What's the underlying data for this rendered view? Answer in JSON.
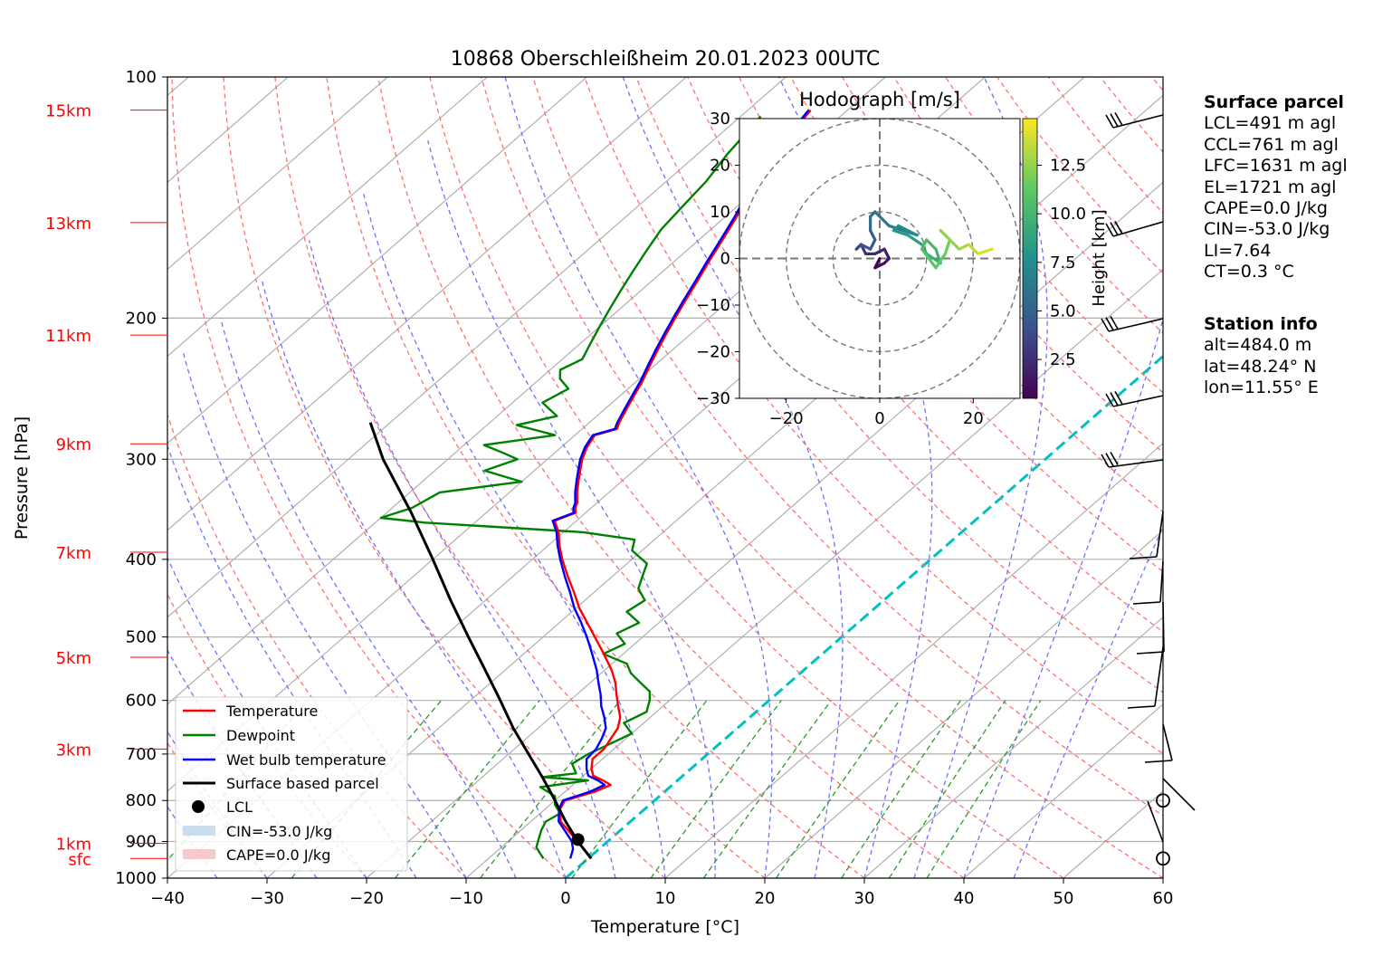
{
  "chart_data": {
    "type": "line",
    "title": "10868 Oberschleißheim 20.01.2023 00UTC",
    "xlabel": "Temperature [°C]",
    "ylabel": "Pressure [hPa]",
    "xlim": [
      -40,
      60
    ],
    "ylim": [
      1000,
      100
    ],
    "y_scale": "log",
    "x_ticks": [
      "−40",
      "−30",
      "−20",
      "−10",
      "0",
      "10",
      "20",
      "30",
      "40",
      "50",
      "60"
    ],
    "x_tick_values": [
      -40,
      -30,
      -20,
      -10,
      0,
      10,
      20,
      30,
      40,
      50,
      60
    ],
    "y_ticks": [
      100,
      200,
      300,
      400,
      500,
      600,
      700,
      800,
      900,
      1000
    ],
    "height_labels": [
      {
        "label": "sfc",
        "p": 945
      },
      {
        "label": "1km",
        "p": 905
      },
      {
        "label": "3km",
        "p": 690
      },
      {
        "label": "5km",
        "p": 530
      },
      {
        "label": "7km",
        "p": 392
      },
      {
        "label": "9km",
        "p": 287
      },
      {
        "label": "11km",
        "p": 210
      },
      {
        "label": "13km",
        "p": 152
      },
      {
        "label": "15km",
        "p": 110
      }
    ],
    "series": [
      {
        "name": "Temperature",
        "color": "#ff0000",
        "p": [
          945,
          920,
          900,
          880,
          850,
          820,
          800,
          780,
          765,
          755,
          745,
          730,
          710,
          690,
          670,
          650,
          630,
          610,
          590,
          570,
          550,
          520,
          500,
          480,
          460,
          440,
          420,
          400,
          385,
          370,
          358,
          350,
          345,
          340,
          330,
          320,
          310,
          300,
          290,
          280,
          275,
          270,
          260,
          250,
          240,
          230,
          220,
          210,
          200,
          190,
          180,
          170,
          160,
          150,
          145,
          140,
          132,
          125,
          120,
          115,
          110
        ],
        "values": [
          0.3,
          -1.5,
          -3.0,
          -4.6,
          -7.0,
          -8.5,
          -9.0,
          -7.0,
          -6.2,
          -7.5,
          -9.0,
          -10.0,
          -11.0,
          -11.0,
          -11.5,
          -12.0,
          -13.0,
          -14.5,
          -16.0,
          -17.5,
          -19.3,
          -22.5,
          -24.8,
          -27.2,
          -29.7,
          -32.0,
          -34.5,
          -37.0,
          -38.8,
          -40.5,
          -42.2,
          -41.0,
          -41.6,
          -42.0,
          -43.2,
          -44.3,
          -45.4,
          -46.5,
          -47.4,
          -48.0,
          -46.5,
          -47.0,
          -47.8,
          -48.6,
          -49.4,
          -50.4,
          -51.4,
          -52.4,
          -53.4,
          -54.4,
          -55.4,
          -56.5,
          -57.6,
          -58.8,
          -59.5,
          -59.0,
          -61.0,
          -62.0,
          -62.6,
          -63.2,
          -63.7
        ]
      },
      {
        "name": "Dewpoint",
        "color": "#008000",
        "p": [
          945,
          930,
          915,
          900,
          885,
          870,
          850,
          830,
          810,
          790,
          770,
          755,
          748,
          740,
          720,
          700,
          680,
          660,
          640,
          620,
          600,
          585,
          570,
          555,
          540,
          525,
          510,
          495,
          480,
          465,
          450,
          435,
          420,
          405,
          390,
          378,
          370,
          360,
          355,
          345,
          330,
          320,
          310,
          300,
          295,
          288,
          280,
          272,
          265,
          255,
          245,
          238,
          232,
          225,
          215,
          205,
          195,
          185,
          175,
          165,
          155,
          145,
          135,
          125,
          118,
          112
        ],
        "values": [
          -4.5,
          -5.5,
          -6.5,
          -7.0,
          -7.5,
          -8.0,
          -8.5,
          -8.0,
          -9.5,
          -10.5,
          -13.0,
          -9.0,
          -14.0,
          -11.0,
          -12.5,
          -12.0,
          -11.0,
          -10.0,
          -12.0,
          -11.0,
          -12.0,
          -13.0,
          -15.0,
          -17.0,
          -18.5,
          -22.0,
          -21.0,
          -23.0,
          -22.0,
          -24.5,
          -24.0,
          -26.0,
          -27.0,
          -28.0,
          -31.0,
          -32.0,
          -38.0,
          -55.0,
          -60.0,
          -58.0,
          -57.0,
          -50.0,
          -55.0,
          -53.0,
          -55.0,
          -58.0,
          -52.0,
          -57.0,
          -54.0,
          -57.0,
          -56.0,
          -58.0,
          -59.0,
          -58.0,
          -59.0,
          -60.0,
          -61.0,
          -62.0,
          -63.0,
          -64.0,
          -65.0,
          -65.5,
          -66.0,
          -67.0,
          -67.5,
          -68.0
        ]
      },
      {
        "name": "Wet bulb temperature",
        "color": "#0000ff",
        "p": [
          945,
          920,
          900,
          880,
          850,
          820,
          800,
          780,
          765,
          755,
          745,
          730,
          710,
          690,
          670,
          650,
          630,
          610,
          590,
          570,
          550,
          520,
          500,
          480,
          460,
          440,
          420,
          400,
          385,
          370,
          358,
          350,
          345,
          340,
          330,
          320,
          310,
          300,
          290,
          280,
          275,
          270,
          260,
          250,
          240,
          230,
          220,
          210,
          200,
          190,
          180,
          170,
          160,
          150,
          145,
          140,
          132,
          125,
          120,
          115,
          110
        ],
        "values": [
          -1.8,
          -2.6,
          -3.6,
          -5.0,
          -7.2,
          -8.6,
          -9.2,
          -7.5,
          -6.8,
          -8.0,
          -9.5,
          -10.5,
          -11.6,
          -11.8,
          -12.4,
          -13.2,
          -14.6,
          -16.2,
          -17.6,
          -19.2,
          -20.8,
          -23.6,
          -25.6,
          -27.8,
          -30.2,
          -32.4,
          -34.8,
          -37.2,
          -39.0,
          -40.7,
          -42.4,
          -41.2,
          -41.8,
          -42.2,
          -43.4,
          -44.5,
          -45.6,
          -46.7,
          -47.6,
          -48.2,
          -46.7,
          -47.2,
          -48.0,
          -48.8,
          -49.6,
          -50.6,
          -51.6,
          -52.6,
          -53.6,
          -54.6,
          -55.6,
          -56.7,
          -57.8,
          -59.0,
          -59.7,
          -59.2,
          -61.2,
          -62.2,
          -62.8,
          -63.4,
          -63.9
        ]
      },
      {
        "name": "Surface based parcel",
        "color": "#000000",
        "p": [
          945,
          900,
          850,
          800,
          750,
          700,
          650,
          600,
          550,
          500,
          450,
          400,
          350,
          300,
          270
        ],
        "values": [
          0.3,
          -3.0,
          -6.5,
          -10.0,
          -13.8,
          -18.0,
          -22.5,
          -27.0,
          -32.0,
          -37.5,
          -43.5,
          -50.0,
          -57.5,
          -66.5,
          -72.0
        ]
      }
    ],
    "lcl_marker": {
      "label": "LCL",
      "p": 895,
      "t": -3.2
    },
    "freezing_level_line": "cyan dashed, 0 °C isotherm",
    "legend_entries": [
      "Temperature",
      "Dewpoint",
      "Wet bulb temperature",
      "Surface based parcel",
      "LCL",
      "CIN=-53.0 J/kg",
      "CAPE=0.0 J/kg"
    ],
    "legend_placement": "lower-left",
    "wind_barbs_side": "right",
    "station_circles_p": [
      945,
      800
    ],
    "hodograph": {
      "title": "Hodograph [m/s]",
      "xlim": [
        -30,
        30
      ],
      "ylim": [
        -30,
        30
      ],
      "x_ticks": [
        "−20",
        "0",
        "20"
      ],
      "x_tick_values": [
        -20,
        0,
        20
      ],
      "y_ticks": [
        "30",
        "20",
        "10",
        "0",
        "−10",
        "−20",
        "−30"
      ],
      "y_tick_values": [
        30,
        20,
        10,
        0,
        -10,
        -20,
        -30
      ],
      "rings": [
        10,
        20,
        30
      ],
      "colorbar_label": "Height [km]",
      "colorbar_ticks": [
        "2.5",
        "5.0",
        "7.5",
        "10.0",
        "12.5"
      ],
      "colorbar_tick_values": [
        2.5,
        5.0,
        7.5,
        10.0,
        12.5
      ],
      "colorbar_range": [
        0.5,
        14.9
      ],
      "colormap": "viridis",
      "u": [
        0,
        -1,
        1,
        2,
        1,
        -1,
        -3,
        -4,
        -5,
        -4,
        -2,
        -1,
        -2,
        -2,
        -1,
        2,
        5,
        8,
        4,
        3,
        6,
        9,
        10,
        13,
        12,
        10,
        9,
        12,
        14,
        15,
        13,
        17,
        19,
        21,
        24
      ],
      "v": [
        0,
        -2,
        -1,
        0,
        2,
        1,
        1,
        3,
        2,
        3,
        2,
        4,
        6,
        9,
        10,
        7,
        6,
        5,
        7,
        6,
        5,
        3,
        1,
        -1,
        2,
        4,
        2,
        -2,
        1,
        4,
        6,
        2,
        3,
        1,
        2
      ],
      "h": [
        0.5,
        0.9,
        1.3,
        1.7,
        2.1,
        2.5,
        2.9,
        3.3,
        3.7,
        4.1,
        4.5,
        4.9,
        5.3,
        5.7,
        6.1,
        6.5,
        6.9,
        7.3,
        7.7,
        8.1,
        8.5,
        8.9,
        9.3,
        9.7,
        10.1,
        10.5,
        10.9,
        11.3,
        11.7,
        12.1,
        12.5,
        13.0,
        13.5,
        14.0,
        14.5
      ]
    }
  },
  "info": {
    "surface_header": "Surface parcel",
    "lcl": "LCL=491 m agl",
    "ccl": "CCL=761 m agl",
    "lfc": "LFC=1631 m agl",
    "el": "EL=1721 m agl",
    "cape": "CAPE=0.0 J/kg",
    "cin": "CIN=-53.0 J/kg",
    "li": "LI=7.64",
    "ct": "CT=0.3 °C",
    "station_header": "Station info",
    "alt": "alt=484.0 m",
    "lat": "lat=48.24° N",
    "lon": "lon=11.55° E"
  },
  "colors": {
    "temperature": "#ff0000",
    "dewpoint": "#008000",
    "wetbulb": "#0000ff",
    "parcel": "#000000",
    "dry_adiabat": "#ff7070",
    "moist_adiabat": "#7070ff",
    "mixing_ratio": "#2e9a2e",
    "isotherm_zero": "#00c0c0",
    "height_labels": "#ff0000"
  }
}
